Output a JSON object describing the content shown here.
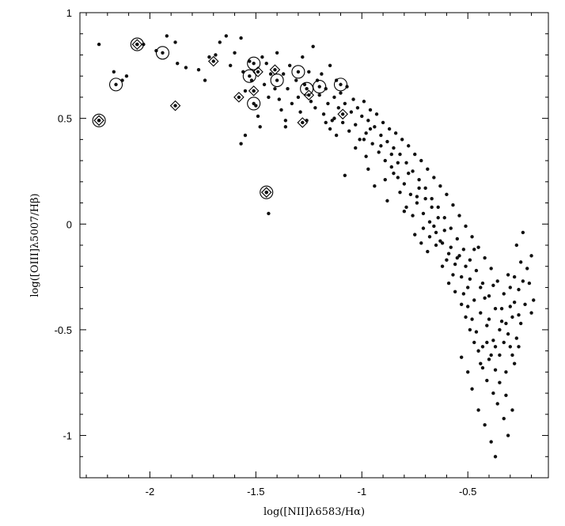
{
  "chart_data": {
    "type": "scatter",
    "title": "",
    "xlabel": "log([NII]λ6583/Hα)",
    "ylabel": "log([OIII]λ5007/Hβ)",
    "xlim": [
      -2.33,
      -0.12
    ],
    "ylim": [
      -1.2,
      1.0
    ],
    "xticks": [
      -2,
      -1.5,
      -1,
      -0.5
    ],
    "xtick_labels": [
      "-2",
      "-1.5",
      "-1",
      "-0.5"
    ],
    "yticks": [
      1,
      0.5,
      0,
      -0.5,
      -1
    ],
    "ytick_labels": [
      "1",
      "0.5",
      "0",
      "-0.5",
      "-1"
    ],
    "grid": false,
    "series": [
      {
        "marker": "dot",
        "points": [
          [
            -2.24,
            0.85
          ],
          [
            -2.17,
            0.72
          ],
          [
            -2.13,
            0.68
          ],
          [
            -2.11,
            0.7
          ],
          [
            -2.03,
            0.85
          ],
          [
            -1.97,
            0.82
          ],
          [
            -1.92,
            0.89
          ],
          [
            -1.88,
            0.86
          ],
          [
            -1.87,
            0.76
          ],
          [
            -1.83,
            0.74
          ],
          [
            -1.77,
            0.73
          ],
          [
            -1.74,
            0.68
          ],
          [
            -1.72,
            0.79
          ],
          [
            -1.69,
            0.8
          ],
          [
            -1.67,
            0.86
          ],
          [
            -1.64,
            0.89
          ],
          [
            -1.62,
            0.75
          ],
          [
            -1.6,
            0.81
          ],
          [
            -1.57,
            0.88
          ],
          [
            -1.56,
            0.72
          ],
          [
            -1.55,
            0.63
          ],
          [
            -1.53,
            0.77
          ],
          [
            -1.52,
            0.68
          ],
          [
            -1.51,
            0.63
          ],
          [
            -1.5,
            0.56
          ],
          [
            -1.49,
            0.51
          ],
          [
            -1.48,
            0.46
          ],
          [
            -1.47,
            0.79
          ],
          [
            -1.46,
            0.66
          ],
          [
            -1.45,
            0.76
          ],
          [
            -1.44,
            0.6
          ],
          [
            -1.43,
            0.71
          ],
          [
            -1.41,
            0.64
          ],
          [
            -1.4,
            0.81
          ],
          [
            -1.39,
            0.59
          ],
          [
            -1.38,
            0.54
          ],
          [
            -1.37,
            0.71
          ],
          [
            -1.36,
            0.49
          ],
          [
            -1.35,
            0.64
          ],
          [
            -1.34,
            0.75
          ],
          [
            -1.33,
            0.57
          ],
          [
            -1.31,
            0.68
          ],
          [
            -1.3,
            0.6
          ],
          [
            -1.29,
            0.53
          ],
          [
            -1.28,
            0.79
          ],
          [
            -1.27,
            0.66
          ],
          [
            -1.26,
            0.49
          ],
          [
            -1.25,
            0.72
          ],
          [
            -1.24,
            0.58
          ],
          [
            -1.23,
            0.84
          ],
          [
            -1.22,
            0.55
          ],
          [
            -1.21,
            0.68
          ],
          [
            -1.2,
            0.61
          ],
          [
            -1.19,
            0.71
          ],
          [
            -1.18,
            0.52
          ],
          [
            -1.17,
            0.64
          ],
          [
            -1.16,
            0.57
          ],
          [
            -1.15,
            0.75
          ],
          [
            -1.14,
            0.49
          ],
          [
            -1.13,
            0.6
          ],
          [
            -1.12,
            0.68
          ],
          [
            -1.11,
            0.55
          ],
          [
            -1.1,
            0.62
          ],
          [
            -1.09,
            0.48
          ],
          [
            -1.08,
            0.57
          ],
          [
            -1.07,
            0.65
          ],
          [
            -1.06,
            0.44
          ],
          [
            -1.05,
            0.53
          ],
          [
            -1.04,
            0.59
          ],
          [
            -1.03,
            0.47
          ],
          [
            -1.02,
            0.55
          ],
          [
            -1.01,
            0.4
          ],
          [
            -1.0,
            0.51
          ],
          [
            -0.99,
            0.58
          ],
          [
            -0.98,
            0.43
          ],
          [
            -0.97,
            0.49
          ],
          [
            -0.96,
            0.54
          ],
          [
            -0.95,
            0.38
          ],
          [
            -0.94,
            0.46
          ],
          [
            -0.93,
            0.52
          ],
          [
            -0.92,
            0.34
          ],
          [
            -0.91,
            0.42
          ],
          [
            -0.9,
            0.48
          ],
          [
            -0.89,
            0.3
          ],
          [
            -0.88,
            0.39
          ],
          [
            -0.87,
            0.45
          ],
          [
            -0.86,
            0.27
          ],
          [
            -0.85,
            0.36
          ],
          [
            -0.84,
            0.43
          ],
          [
            -0.83,
            0.22
          ],
          [
            -0.82,
            0.33
          ],
          [
            -0.81,
            0.4
          ],
          [
            -0.8,
            0.19
          ],
          [
            -0.79,
            0.29
          ],
          [
            -0.78,
            0.37
          ],
          [
            -0.77,
            0.14
          ],
          [
            -0.76,
            0.25
          ],
          [
            -0.75,
            0.33
          ],
          [
            -0.74,
            0.1
          ],
          [
            -0.73,
            0.21
          ],
          [
            -0.72,
            0.3
          ],
          [
            -0.71,
            0.05
          ],
          [
            -0.7,
            0.17
          ],
          [
            -0.69,
            0.26
          ],
          [
            -0.68,
            0.01
          ],
          [
            -0.67,
            0.12
          ],
          [
            -0.66,
            0.22
          ],
          [
            -0.65,
            -0.04
          ],
          [
            -0.64,
            0.08
          ],
          [
            -0.63,
            0.18
          ],
          [
            -0.62,
            -0.09
          ],
          [
            -0.61,
            0.03
          ],
          [
            -0.6,
            0.14
          ],
          [
            -0.59,
            -0.14
          ],
          [
            -0.58,
            -0.02
          ],
          [
            -0.57,
            0.09
          ],
          [
            -0.56,
            -0.19
          ],
          [
            -0.55,
            -0.07
          ],
          [
            -0.54,
            0.04
          ],
          [
            -0.53,
            -0.25
          ],
          [
            -0.52,
            -0.12
          ],
          [
            -0.51,
            -0.01
          ],
          [
            -0.5,
            -0.3
          ],
          [
            -0.49,
            -0.17
          ],
          [
            -0.48,
            -0.06
          ],
          [
            -0.47,
            -0.36
          ],
          [
            -0.46,
            -0.22
          ],
          [
            -0.45,
            -0.11
          ],
          [
            -0.44,
            -0.42
          ],
          [
            -0.43,
            -0.28
          ],
          [
            -0.42,
            -0.16
          ],
          [
            -0.41,
            -0.48
          ],
          [
            -0.4,
            -0.34
          ],
          [
            -0.39,
            -0.21
          ],
          [
            -0.38,
            -0.55
          ],
          [
            -0.37,
            -0.4
          ],
          [
            -0.36,
            -0.27
          ],
          [
            -0.35,
            -0.62
          ],
          [
            -0.34,
            -0.46
          ],
          [
            -0.33,
            -0.33
          ],
          [
            -0.32,
            -0.7
          ],
          [
            -0.31,
            -0.52
          ],
          [
            -0.3,
            -0.39
          ],
          [
            -0.29,
            -0.44
          ],
          [
            -0.28,
            -0.25
          ],
          [
            -0.27,
            -0.1
          ],
          [
            -0.26,
            -0.31
          ],
          [
            -0.25,
            -0.18
          ],
          [
            -0.24,
            -0.04
          ],
          [
            -0.22,
            -0.21
          ],
          [
            -0.2,
            -0.15
          ],
          [
            -0.19,
            -0.36
          ],
          [
            -0.45,
            -0.88
          ],
          [
            -0.42,
            -0.95
          ],
          [
            -0.39,
            -1.03
          ],
          [
            -0.37,
            -1.1
          ],
          [
            -0.36,
            -0.85
          ],
          [
            -0.33,
            -0.92
          ],
          [
            -0.31,
            -1.0
          ],
          [
            -0.29,
            -0.88
          ],
          [
            -0.48,
            -0.78
          ],
          [
            -0.5,
            -0.7
          ],
          [
            -0.53,
            -0.63
          ],
          [
            -0.44,
            -0.66
          ],
          [
            -0.41,
            -0.74
          ],
          [
            -0.38,
            -0.8
          ],
          [
            -1.44,
            0.05
          ],
          [
            -1.36,
            0.46
          ],
          [
            -1.57,
            0.38
          ],
          [
            -1.55,
            0.42
          ],
          [
            -1.08,
            0.23
          ],
          [
            -0.94,
            0.18
          ],
          [
            -0.98,
            0.32
          ],
          [
            -0.88,
            0.11
          ],
          [
            -0.8,
            0.06
          ],
          [
            -0.82,
            0.15
          ],
          [
            -0.75,
            -0.05
          ],
          [
            -0.72,
            -0.09
          ],
          [
            -0.69,
            -0.13
          ],
          [
            -0.66,
            -0.01
          ],
          [
            -0.63,
            -0.08
          ],
          [
            -0.6,
            -0.17
          ],
          [
            -0.57,
            -0.24
          ],
          [
            -0.54,
            -0.15
          ],
          [
            -0.51,
            -0.2
          ],
          [
            -0.49,
            -0.26
          ],
          [
            -0.47,
            -0.12
          ],
          [
            -0.44,
            -0.3
          ],
          [
            -0.42,
            -0.35
          ],
          [
            -0.4,
            -0.45
          ],
          [
            -0.38,
            -0.29
          ],
          [
            -0.35,
            -0.5
          ],
          [
            -0.33,
            -0.56
          ],
          [
            -0.31,
            -0.24
          ],
          [
            -0.29,
            -0.62
          ],
          [
            -0.27,
            -0.54
          ],
          [
            -0.25,
            -0.47
          ],
          [
            -0.23,
            -0.38
          ],
          [
            -0.21,
            -0.28
          ],
          [
            -0.2,
            -0.42
          ],
          [
            -0.96,
            0.45
          ],
          [
            -0.99,
            0.4
          ],
          [
            -1.03,
            0.36
          ],
          [
            -0.91,
            0.37
          ],
          [
            -0.86,
            0.33
          ],
          [
            -0.83,
            0.29
          ],
          [
            -0.78,
            0.24
          ],
          [
            -0.73,
            0.17
          ],
          [
            -0.7,
            0.12
          ],
          [
            -0.67,
            0.08
          ],
          [
            -0.64,
            0.03
          ],
          [
            -0.61,
            -0.03
          ],
          [
            -0.58,
            -0.11
          ],
          [
            -0.55,
            -0.16
          ],
          [
            -0.52,
            -0.33
          ],
          [
            -0.5,
            -0.39
          ],
          [
            -0.48,
            -0.45
          ],
          [
            -0.46,
            -0.51
          ],
          [
            -0.43,
            -0.58
          ],
          [
            -0.4,
            -0.64
          ],
          [
            -0.37,
            -0.69
          ],
          [
            -0.35,
            -0.75
          ],
          [
            -0.32,
            -0.81
          ],
          [
            -0.3,
            -0.58
          ],
          [
            -0.28,
            -0.66
          ],
          [
            -0.26,
            -0.58
          ],
          [
            -1.13,
            0.5
          ],
          [
            -1.15,
            0.45
          ],
          [
            -1.17,
            0.48
          ],
          [
            -1.12,
            0.42
          ],
          [
            -0.97,
            0.26
          ],
          [
            -0.89,
            0.21
          ],
          [
            -0.85,
            0.24
          ],
          [
            -0.79,
            0.08
          ],
          [
            -0.76,
            0.04
          ],
          [
            -0.74,
            0.13
          ],
          [
            -0.71,
            -0.02
          ],
          [
            -0.68,
            -0.06
          ],
          [
            -0.65,
            -0.1
          ],
          [
            -0.62,
            -0.2
          ],
          [
            -0.59,
            -0.28
          ],
          [
            -0.56,
            -0.32
          ],
          [
            -0.53,
            -0.38
          ],
          [
            -0.51,
            -0.44
          ],
          [
            -0.49,
            -0.5
          ],
          [
            -0.47,
            -0.56
          ],
          [
            -0.45,
            -0.6
          ],
          [
            -0.43,
            -0.68
          ],
          [
            -0.41,
            -0.56
          ],
          [
            -0.39,
            -0.62
          ],
          [
            -0.37,
            -0.58
          ],
          [
            -0.34,
            -0.4
          ],
          [
            -0.32,
            -0.47
          ],
          [
            -0.3,
            -0.3
          ],
          [
            -0.28,
            -0.37
          ],
          [
            -0.26,
            -0.43
          ],
          [
            -0.24,
            -0.27
          ]
        ]
      },
      {
        "marker": "circle",
        "points": [
          [
            -2.24,
            0.49
          ],
          [
            -2.16,
            0.66
          ],
          [
            -2.06,
            0.85
          ],
          [
            -1.94,
            0.81
          ],
          [
            -1.53,
            0.7
          ],
          [
            -1.51,
            0.76
          ],
          [
            -1.51,
            0.57
          ],
          [
            -1.4,
            0.68
          ],
          [
            -1.3,
            0.72
          ],
          [
            -1.26,
            0.64
          ],
          [
            -1.2,
            0.65
          ],
          [
            -1.1,
            0.66
          ]
        ]
      },
      {
        "marker": "diamond",
        "points": [
          [
            -2.24,
            0.49
          ],
          [
            -2.06,
            0.85
          ],
          [
            -1.88,
            0.56
          ],
          [
            -1.7,
            0.77
          ],
          [
            -1.58,
            0.6
          ],
          [
            -1.51,
            0.63
          ],
          [
            -1.49,
            0.72
          ],
          [
            -1.41,
            0.73
          ],
          [
            -1.28,
            0.48
          ],
          [
            -1.25,
            0.61
          ],
          [
            -1.09,
            0.52
          ],
          [
            -1.45,
            0.15
          ]
        ]
      },
      {
        "marker": "circle",
        "points": [
          [
            -1.45,
            0.15
          ]
        ]
      }
    ]
  }
}
